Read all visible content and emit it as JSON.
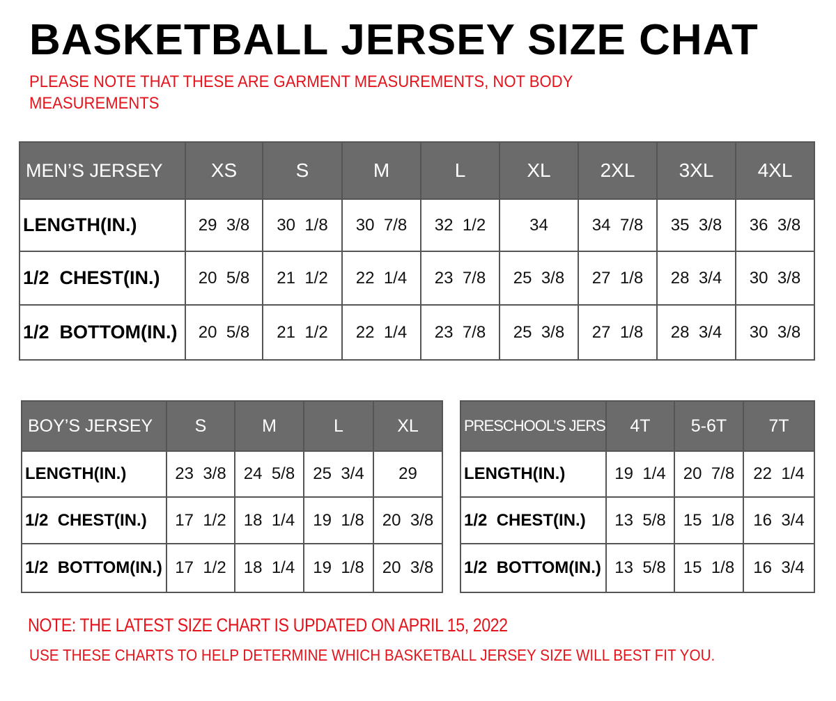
{
  "title": "BASKETBALL JERSEY SIZE CHAT",
  "subtitle_line1": "PLEASE NOTE THAT THESE ARE GARMENT MEASUREMENTS, NOT BODY",
  "subtitle_line2": "MEASUREMENTS",
  "colors": {
    "header_bg": "#6b6b6b",
    "note_red": "#e3141b"
  },
  "tables": {
    "men": {
      "header": [
        "MEN’S JERSEY",
        "XS",
        "S",
        "M",
        "L",
        "XL",
        "2XL",
        "3XL",
        "4XL"
      ],
      "rows": [
        [
          "LENGTH(IN.)",
          "29  3/8",
          "30  1/8",
          "30  7/8",
          "32  1/2",
          "34",
          "34  7/8",
          "35  3/8",
          "36  3/8"
        ],
        [
          "1/2  CHEST(IN.)",
          "20  5/8",
          "21  1/2",
          "22  1/4",
          "23  7/8",
          "25  3/8",
          "27  1/8",
          "28  3/4",
          "30  3/8"
        ],
        [
          "1/2  BOTTOM(IN.)",
          "20  5/8",
          "21  1/2",
          "22  1/4",
          "23  7/8",
          "25  3/8",
          "27  1/8",
          "28  3/4",
          "30  3/8"
        ]
      ]
    },
    "boy": {
      "header": [
        "BOY’S JERSEY",
        "S",
        "M",
        "L",
        "XL"
      ],
      "rows": [
        [
          "LENGTH(IN.)",
          "23  3/8",
          "24  5/8",
          "25  3/4",
          "29"
        ],
        [
          "1/2  CHEST(IN.)",
          "17  1/2",
          "18  1/4",
          "19  1/8",
          "20  3/8"
        ],
        [
          "1/2  BOTTOM(IN.)",
          "17  1/2",
          "18  1/4",
          "19  1/8",
          "20  3/8"
        ]
      ]
    },
    "pre": {
      "header": [
        "PRESCHOOL’S JERSEY",
        "4T",
        "5-6T",
        "7T"
      ],
      "rows": [
        [
          "LENGTH(IN.)",
          "19  1/4",
          "20  7/8",
          "22  1/4"
        ],
        [
          "1/2  CHEST(IN.)",
          "13  5/8",
          "15  1/8",
          "16  3/4"
        ],
        [
          "1/2  BOTTOM(IN.)",
          "13  5/8",
          "15  1/8",
          "16  3/4"
        ]
      ]
    }
  },
  "note_line1": "NOTE: THE LATEST SIZE CHART IS UPDATED ON APRIL 15, 2022",
  "note_line2": "USE THESE CHARTS TO HELP DETERMINE WHICH  BASKETBALL JERSEY  SIZE WILL BEST FIT YOU."
}
